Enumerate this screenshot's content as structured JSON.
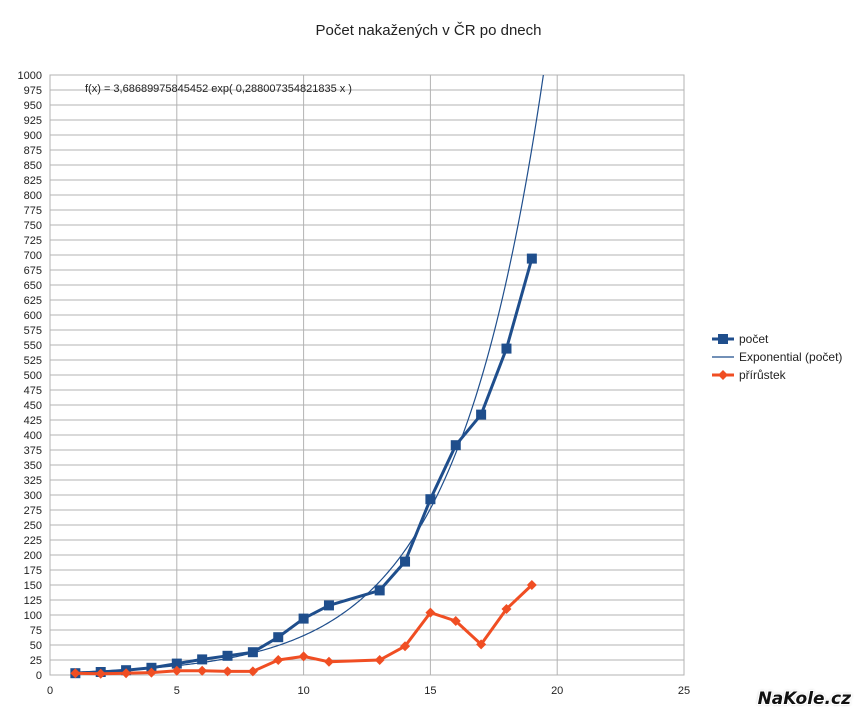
{
  "chart_data": {
    "type": "line",
    "title": "Počet nakažených v ČR po dnech",
    "xlabel": "",
    "ylabel": "",
    "xlim": [
      0,
      25
    ],
    "ylim": [
      0,
      1000
    ],
    "x_ticks": [
      0,
      5,
      10,
      15,
      20,
      25
    ],
    "y_tick_step": 25,
    "grid": true,
    "legend_position": "right",
    "annotation": "f(x) = 3,68689975845452 exp( 0,288007354821835 x )",
    "trendline": {
      "name": "Exponential (počet)",
      "type": "exponential",
      "a": 3.68689975845452,
      "b": 0.288007354821835,
      "color": "#1f4e8c"
    },
    "series": [
      {
        "name": "počet",
        "color": "#1f4e8c",
        "marker": "square",
        "x": [
          1,
          2,
          3,
          4,
          5,
          6,
          7,
          8,
          9,
          10,
          11,
          13,
          14,
          15,
          16,
          17,
          18,
          19
        ],
        "values": [
          3,
          5,
          8,
          12,
          19,
          26,
          32,
          38,
          63,
          94,
          116,
          141,
          189,
          293,
          383,
          434,
          544,
          694
        ]
      },
      {
        "name": "přírůstek",
        "color": "#f04e23",
        "marker": "diamond",
        "x": [
          1,
          2,
          3,
          4,
          5,
          6,
          7,
          8,
          9,
          10,
          11,
          13,
          14,
          15,
          16,
          17,
          18,
          19
        ],
        "values": [
          3,
          2,
          3,
          4,
          7,
          7,
          6,
          6,
          25,
          31,
          22,
          25,
          48,
          104,
          90,
          51,
          110,
          150
        ]
      }
    ]
  },
  "watermark": "NaKole.cz"
}
